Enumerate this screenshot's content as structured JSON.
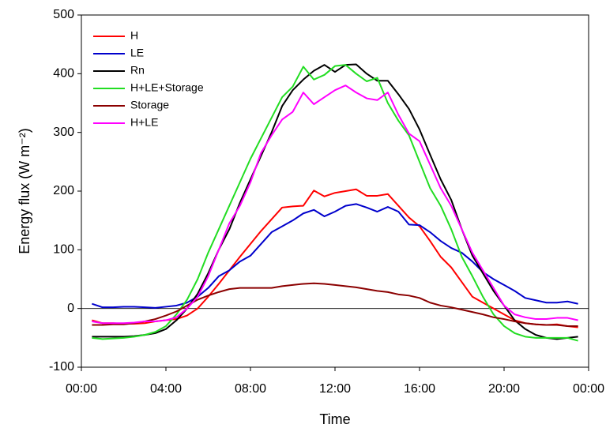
{
  "chart_data": {
    "type": "line",
    "x_label": "Time",
    "y_label": "Energy flux  (W m⁻²)",
    "x": [
      0.5,
      1,
      1.5,
      2,
      2.5,
      3,
      3.5,
      4,
      4.5,
      5,
      5.5,
      6,
      6.5,
      7,
      7.5,
      8,
      8.5,
      9,
      9.5,
      10,
      10.5,
      11,
      11.5,
      12,
      12.5,
      13,
      13.5,
      14,
      14.5,
      15,
      15.5,
      16,
      16.5,
      17,
      17.5,
      18,
      18.5,
      19,
      19.5,
      20,
      20.5,
      21,
      21.5,
      22,
      22.5,
      23,
      23.5
    ],
    "series": [
      {
        "name": "H",
        "color": "#ff0000",
        "values": [
          -20,
          -25,
          -25,
          -26,
          -26,
          -25,
          -22,
          -20,
          -18,
          -12,
          0,
          20,
          42,
          65,
          88,
          110,
          132,
          152,
          172,
          174,
          175,
          201,
          191,
          197,
          200,
          203,
          192,
          192,
          195,
          175,
          155,
          140,
          115,
          88,
          70,
          45,
          20,
          10,
          0,
          -10,
          -20,
          -25,
          -27,
          -28,
          -27,
          -30,
          -32
        ]
      },
      {
        "name": "LE",
        "color": "#0000cc",
        "values": [
          8,
          2,
          2,
          3,
          3,
          2,
          1,
          3,
          5,
          10,
          20,
          35,
          55,
          65,
          80,
          90,
          110,
          130,
          140,
          150,
          162,
          168,
          157,
          165,
          175,
          178,
          172,
          165,
          173,
          165,
          143,
          142,
          130,
          115,
          103,
          95,
          80,
          62,
          50,
          40,
          30,
          18,
          14,
          10,
          10,
          12,
          8
        ]
      },
      {
        "name": "Rn",
        "color": "#000000",
        "values": [
          -48,
          -48,
          -48,
          -48,
          -47,
          -45,
          -42,
          -35,
          -20,
          0,
          25,
          60,
          100,
          135,
          180,
          220,
          260,
          300,
          345,
          372,
          390,
          405,
          415,
          403,
          415,
          416,
          400,
          388,
          388,
          365,
          340,
          305,
          262,
          220,
          185,
          135,
          90,
          60,
          30,
          5,
          -20,
          -35,
          -45,
          -50,
          -52,
          -50,
          -48
        ]
      },
      {
        "name": "H+LE+Storage",
        "color": "#22dd22",
        "values": [
          -50,
          -52,
          -51,
          -50,
          -48,
          -45,
          -40,
          -30,
          -10,
          15,
          50,
          95,
          135,
          175,
          215,
          255,
          290,
          325,
          360,
          378,
          412,
          390,
          398,
          413,
          415,
          400,
          387,
          393,
          350,
          320,
          295,
          250,
          205,
          175,
          135,
          88,
          55,
          20,
          -10,
          -30,
          -42,
          -48,
          -50,
          -50,
          -50,
          -50,
          -55
        ]
      },
      {
        "name": "Storage",
        "color": "#8b0000",
        "values": [
          -28,
          -28,
          -27,
          -27,
          -25,
          -22,
          -18,
          -12,
          -5,
          5,
          15,
          22,
          28,
          33,
          35,
          35,
          35,
          35,
          38,
          40,
          42,
          43,
          42,
          40,
          38,
          36,
          33,
          30,
          28,
          24,
          22,
          18,
          10,
          5,
          2,
          -2,
          -6,
          -10,
          -15,
          -18,
          -22,
          -25,
          -27,
          -28,
          -28,
          -30,
          -30
        ]
      },
      {
        "name": "H+LE",
        "color": "#ff00ff",
        "values": [
          -22,
          -25,
          -25,
          -25,
          -24,
          -22,
          -22,
          -20,
          -15,
          0,
          20,
          55,
          100,
          145,
          175,
          215,
          265,
          295,
          322,
          335,
          368,
          348,
          360,
          372,
          380,
          368,
          358,
          355,
          368,
          330,
          298,
          285,
          245,
          205,
          175,
          135,
          95,
          65,
          35,
          5,
          -10,
          -15,
          -18,
          -18,
          -16,
          -16,
          -20
        ]
      }
    ],
    "xlim": [
      0,
      24
    ],
    "xticks": [
      {
        "value": 0,
        "label": "00:00"
      },
      {
        "value": 4,
        "label": "04:00"
      },
      {
        "value": 8,
        "label": "08:00"
      },
      {
        "value": 12,
        "label": "12:00"
      },
      {
        "value": 16,
        "label": "16:00"
      },
      {
        "value": 20,
        "label": "20:00"
      },
      {
        "value": 24,
        "label": "00:00"
      }
    ],
    "ylim": [
      -100,
      500
    ],
    "yticks": [
      -100,
      0,
      100,
      200,
      300,
      400,
      500
    ],
    "hlines": [
      0
    ],
    "grid": false,
    "legend": "top-left"
  }
}
